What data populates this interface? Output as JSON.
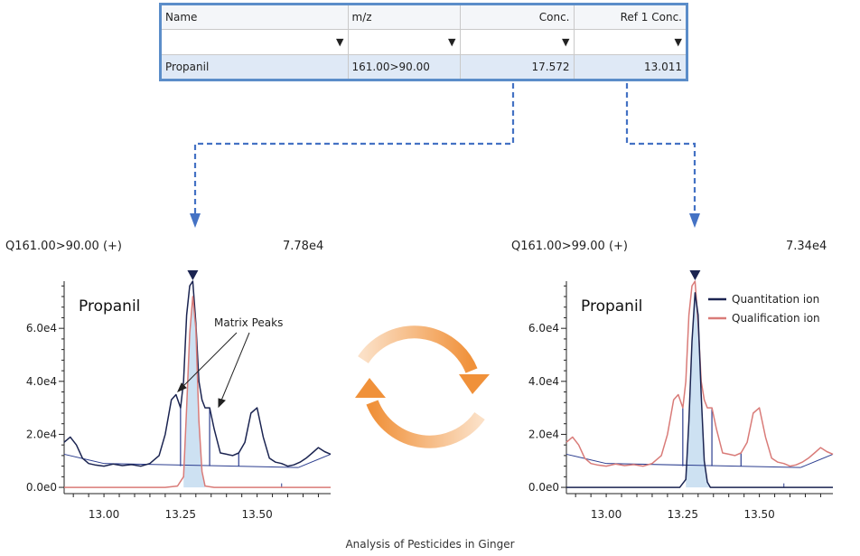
{
  "table": {
    "headers": [
      "Name",
      "m/z",
      "Conc.",
      "Ref 1 Conc."
    ],
    "filter_icon": "filter-icon",
    "rows": [
      [
        "Propanil",
        "161.00>90.00",
        "17.572",
        "13.011"
      ]
    ]
  },
  "cycle_icon": "refresh-cycle-icon",
  "colors": {
    "table_border": "#5b8dc9",
    "arrow": "#4472c4",
    "quantitation": "#1b2451",
    "qualification": "#d97b78",
    "baseline": "#2b3d8f",
    "peak_fill": "#bcd7ee",
    "cycle_orange": "#f0913a"
  },
  "caption": "Analysis of Pesticides in Ginger",
  "chart_data": [
    {
      "type": "line",
      "transition": "Q161.00>90.00 (+)",
      "max_intensity": "7.78e4",
      "compound": "Propanil",
      "annotation": "Matrix Peaks",
      "x_ticks": [
        "13.00",
        "13.25",
        "13.50"
      ],
      "y_ticks": [
        "0.0e0",
        "2.0e4",
        "4.0e4",
        "6.0e4"
      ],
      "xlim": [
        12.87,
        13.74
      ],
      "ylim": [
        -1000,
        77800
      ],
      "retention_time": 13.29,
      "series": [
        {
          "role": "quantitation",
          "x": [
            12.87,
            12.89,
            12.91,
            12.93,
            12.95,
            12.97,
            13.0,
            13.03,
            13.06,
            13.09,
            13.12,
            13.15,
            13.18,
            13.2,
            13.22,
            13.235,
            13.25,
            13.26,
            13.27,
            13.28,
            13.29,
            13.3,
            13.31,
            13.32,
            13.33,
            13.345,
            13.36,
            13.38,
            13.4,
            13.42,
            13.44,
            13.46,
            13.48,
            13.5,
            13.52,
            13.54,
            13.56,
            13.58,
            13.6,
            13.62,
            13.64,
            13.66,
            13.68,
            13.7,
            13.72,
            13.74
          ],
          "y": [
            17000,
            19000,
            16000,
            11000,
            9000,
            8500,
            8000,
            8800,
            8200,
            8600,
            8000,
            9000,
            12000,
            20000,
            33000,
            35000,
            30000,
            40000,
            65000,
            76000,
            77800,
            62000,
            40000,
            33000,
            30000,
            30000,
            22000,
            13000,
            12500,
            12000,
            13000,
            17000,
            28000,
            30000,
            19000,
            11000,
            9500,
            9000,
            8000,
            8500,
            9500,
            11000,
            13000,
            15000,
            13500,
            12500
          ]
        },
        {
          "role": "qualification",
          "x": [
            12.87,
            12.9,
            12.95,
            13.0,
            13.05,
            13.1,
            13.15,
            13.2,
            13.24,
            13.26,
            13.27,
            13.28,
            13.29,
            13.3,
            13.31,
            13.32,
            13.33,
            13.36,
            13.4,
            13.5,
            13.6,
            13.7,
            13.74
          ],
          "y": [
            0,
            0,
            0,
            0,
            0,
            0,
            0,
            0,
            500,
            4000,
            30000,
            58000,
            72000,
            60000,
            25000,
            6000,
            500,
            0,
            0,
            0,
            0,
            0,
            0
          ]
        }
      ]
    },
    {
      "type": "line",
      "transition": "Q161.00>99.00 (+)",
      "max_intensity": "7.34e4",
      "compound": "Propanil",
      "legend": [
        "Quantitation ion",
        "Qualification ion"
      ],
      "x_ticks": [
        "13.00",
        "13.25",
        "13.50"
      ],
      "y_ticks": [
        "0.0e0",
        "2.0e4",
        "4.0e4",
        "6.0e4"
      ],
      "xlim": [
        12.87,
        13.74
      ],
      "ylim": [
        -1000,
        77800
      ],
      "retention_time": 13.29,
      "series": [
        {
          "role": "quantitation",
          "x": [
            12.87,
            12.9,
            12.95,
            13.0,
            13.05,
            13.1,
            13.15,
            13.2,
            13.24,
            13.26,
            13.27,
            13.28,
            13.29,
            13.3,
            13.31,
            13.32,
            13.33,
            13.34,
            13.36,
            13.4,
            13.5,
            13.6,
            13.7,
            13.74
          ],
          "y": [
            0,
            0,
            0,
            0,
            0,
            0,
            0,
            0,
            0,
            3000,
            25000,
            55000,
            73400,
            65000,
            35000,
            10000,
            2000,
            0,
            0,
            0,
            0,
            0,
            0,
            0
          ]
        },
        {
          "role": "qualification",
          "x": [
            12.87,
            12.89,
            12.91,
            12.93,
            12.95,
            12.97,
            13.0,
            13.03,
            13.06,
            13.09,
            13.12,
            13.15,
            13.18,
            13.2,
            13.22,
            13.235,
            13.25,
            13.26,
            13.27,
            13.28,
            13.29,
            13.3,
            13.31,
            13.32,
            13.33,
            13.345,
            13.36,
            13.38,
            13.4,
            13.42,
            13.44,
            13.46,
            13.48,
            13.5,
            13.52,
            13.54,
            13.56,
            13.58,
            13.6,
            13.62,
            13.64,
            13.66,
            13.68,
            13.7,
            13.72,
            13.74
          ],
          "y": [
            17000,
            19000,
            16000,
            11000,
            9000,
            8500,
            8000,
            8800,
            8200,
            8600,
            8000,
            9000,
            12000,
            20000,
            33000,
            35000,
            30000,
            40000,
            65000,
            76000,
            77800,
            62000,
            40000,
            33000,
            30000,
            30000,
            22000,
            13000,
            12500,
            12000,
            13000,
            17000,
            28000,
            30000,
            19000,
            11000,
            9500,
            9000,
            8000,
            8500,
            9500,
            11000,
            13000,
            15000,
            13500,
            12500
          ]
        }
      ]
    }
  ]
}
